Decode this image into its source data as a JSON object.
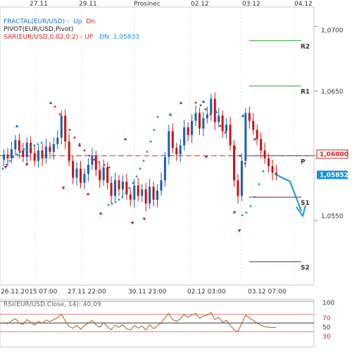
{
  "chart_data": {
    "type": "candlestick",
    "symbol": "EUR/USD",
    "indicators": {
      "fractal": {
        "text": "FRACTAL(EUR/USD) -",
        "up": "Up",
        "dn": "Dn",
        "up_color": "#1a6fc9",
        "dn_color": "#cc2222"
      },
      "pivot": {
        "text": "PIVOT(EUR/USD,Pivot)",
        "color": "#222222"
      },
      "sar": {
        "text": "SAR(EUR/USD,0.02,0.2) - UP",
        "dn_text": "DN: 1,05833",
        "color": "#cc2222",
        "dn_color": "#1a90d9"
      }
    },
    "top_dates": [
      "27.11",
      "29.11",
      "Prosinec",
      "02.12",
      "03.12",
      "04.12"
    ],
    "bottom_dates": [
      "26.11.2015 07:00",
      "27.11 22:00",
      "30.11 23:00",
      "02.12 03:00",
      "03.12 07:00"
    ],
    "price_ticks": [
      "1,0700",
      "1,0650",
      "1,0600",
      "1,0550"
    ],
    "ylim": [
      1.05,
      1.0715
    ],
    "current_price": {
      "label": "1,05852",
      "value": 1.05852,
      "color": "#1a90d9"
    },
    "pivot_level": {
      "label": "1,06000",
      "value": 1.06,
      "color": "#cc2222"
    },
    "levels": [
      {
        "name": "R2",
        "value": 1.0689,
        "color": "#2ca02c"
      },
      {
        "name": "R1",
        "value": 1.0654,
        "color": "#2ca02c"
      },
      {
        "name": "P",
        "value": 1.06,
        "color": "#555555"
      },
      {
        "name": "S1",
        "value": 1.0568,
        "color": "#8b1a1a"
      },
      {
        "name": "S2",
        "value": 1.0518,
        "color": "#8b1a1a"
      }
    ],
    "closes": [
      1.0601,
      1.0598,
      1.0605,
      1.0612,
      1.0604,
      1.0599,
      1.061,
      1.0602,
      1.0596,
      1.0604,
      1.0598,
      1.0607,
      1.0603,
      1.0609,
      1.0614,
      1.0631,
      1.0611,
      1.0596,
      1.0583,
      1.059,
      1.0579,
      1.0586,
      1.0593,
      1.06,
      1.0589,
      1.0581,
      1.0591,
      1.0579,
      1.0569,
      1.0581,
      1.0574,
      1.058,
      1.057,
      1.0566,
      1.0577,
      1.0569,
      1.0574,
      1.0563,
      1.0576,
      1.0566,
      1.0573,
      1.0581,
      1.0599,
      1.0619,
      1.0606,
      1.0601,
      1.0608,
      1.0622,
      1.0616,
      1.0627,
      1.0633,
      1.0621,
      1.0629,
      1.0632,
      1.0644,
      1.0626,
      1.0631,
      1.0619,
      1.0624,
      1.0608,
      1.0581,
      1.0569,
      1.0596,
      1.0633,
      1.0627,
      1.062,
      1.0613,
      1.0604,
      1.0598,
      1.0592,
      1.0587,
      1.0585
    ],
    "sar_up": [
      1.059,
      1.0593,
      1.0596,
      1.0599,
      1.0601,
      1.0603,
      1.0605,
      1.0606,
      1.0607,
      1.0608,
      1.0609,
      1.061,
      1.0562,
      1.0563,
      1.0564,
      1.0566,
      1.0568,
      1.0571,
      1.0575,
      1.0579,
      1.0584,
      1.059,
      1.0596,
      1.0603,
      1.0611,
      1.062,
      1.063,
      1.0554,
      1.0556,
      1.0561,
      1.0568,
      1.0578,
      1.0588
    ],
    "sar_dn": [
      1.0638,
      1.0632,
      1.0626,
      1.062,
      1.0614,
      1.0609,
      1.0604,
      1.06,
      1.0597,
      1.0595,
      1.0593,
      1.0591,
      1.0641,
      1.0639,
      1.0636,
      1.0632,
      1.0628,
      1.0623,
      1.0618,
      1.0612,
      1.0606,
      1.06,
      1.0594
    ],
    "forecast": [
      1.0586,
      1.058,
      1.0555
    ],
    "rsi": {
      "label": "RSI(EUR/USD.Close, 14): 40,09",
      "levels": [
        "100",
        "70",
        "50",
        "30"
      ],
      "values": [
        52,
        48,
        55,
        60,
        50,
        47,
        58,
        52,
        45,
        54,
        49,
        57,
        53,
        58,
        62,
        70,
        55,
        42,
        38,
        45,
        36,
        44,
        50,
        56,
        46,
        40,
        51,
        41,
        35,
        45,
        40,
        46,
        37,
        34,
        44,
        38,
        43,
        34,
        46,
        37,
        44,
        50,
        62,
        72,
        58,
        54,
        60,
        70,
        63,
        69,
        72,
        61,
        66,
        68,
        74,
        58,
        63,
        52,
        56,
        45,
        34,
        30,
        50,
        68,
        62,
        56,
        50,
        45,
        42,
        40,
        40,
        40
      ]
    }
  }
}
